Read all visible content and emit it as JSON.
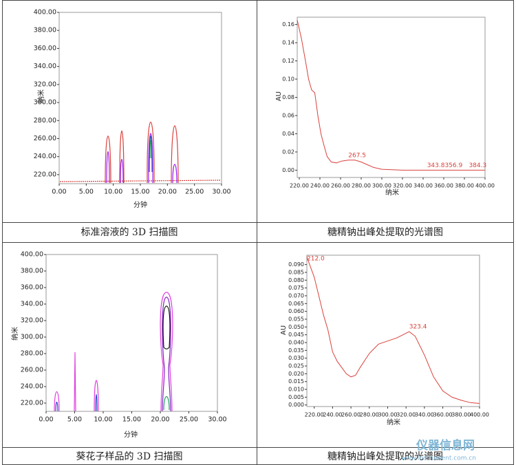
{
  "chart_data": [
    {
      "type": "contour",
      "x_label": "分钟",
      "y_label": "纳米",
      "xlim": [
        0,
        30
      ],
      "xticks": [
        {
          "value": 0,
          "label": "0.00"
        },
        {
          "value": 5,
          "label": "5.00"
        },
        {
          "value": 10,
          "label": "10.00"
        },
        {
          "value": 15,
          "label": "15.00"
        },
        {
          "value": 20,
          "label": "20.00"
        },
        {
          "value": 25,
          "label": "25.00"
        },
        {
          "value": 30,
          "label": "30.00"
        }
      ],
      "ylim": [
        210,
        400
      ],
      "yticks": [
        {
          "value": 220,
          "label": "220.00"
        },
        {
          "value": 240,
          "label": "240.00"
        },
        {
          "value": 260,
          "label": "260.00"
        },
        {
          "value": 280,
          "label": "280.00"
        },
        {
          "value": 300,
          "label": "300.00"
        },
        {
          "value": 320,
          "label": "320.00"
        },
        {
          "value": 340,
          "label": "340.00"
        },
        {
          "value": 360,
          "label": "360.00"
        },
        {
          "value": 380,
          "label": "380.00"
        },
        {
          "value": 400,
          "label": "400.00"
        }
      ]
    },
    {
      "type": "line",
      "x_label": "纳米",
      "y_label": "AU",
      "color": "#d9413b",
      "xlim": [
        218,
        400
      ],
      "xticks": [
        {
          "value": 220,
          "label": "220.00"
        },
        {
          "value": 240,
          "label": "240.00"
        },
        {
          "value": 260,
          "label": "260.00"
        },
        {
          "value": 280,
          "label": "280.00"
        },
        {
          "value": 300,
          "label": "300.00"
        },
        {
          "value": 320,
          "label": "320.00"
        },
        {
          "value": 340,
          "label": "340.00"
        },
        {
          "value": 360,
          "label": "360.00"
        },
        {
          "value": 380,
          "label": "380.00"
        },
        {
          "value": 400,
          "label": "400.00"
        }
      ],
      "ylim": [
        -0.008,
        0.168
      ],
      "yticks": [
        {
          "value": 0,
          "label": "0.00"
        },
        {
          "value": 0.02,
          "label": "0.02"
        },
        {
          "value": 0.04,
          "label": "0.04"
        },
        {
          "value": 0.06,
          "label": "0.06"
        },
        {
          "value": 0.08,
          "label": "0.08"
        },
        {
          "value": 0.1,
          "label": "0.10"
        },
        {
          "value": 0.12,
          "label": "0.12"
        },
        {
          "value": 0.14,
          "label": "0.14"
        },
        {
          "value": 0.16,
          "label": "0.16"
        }
      ],
      "x": [
        218,
        222,
        226,
        229,
        232,
        235,
        238,
        241,
        244,
        247,
        251,
        256,
        261,
        267.5,
        274,
        280,
        286,
        292,
        300,
        310,
        320,
        340,
        360,
        380,
        400
      ],
      "values": [
        0.165,
        0.145,
        0.12,
        0.1,
        0.088,
        0.085,
        0.06,
        0.04,
        0.027,
        0.015,
        0.009,
        0.008,
        0.01,
        0.011,
        0.011,
        0.009,
        0.006,
        0.003,
        0.001,
        0.0005,
        0,
        0,
        0,
        0,
        0
      ],
      "annotations": [
        {
          "x": 267.5,
          "y": 0.011,
          "label": "267.5"
        },
        {
          "x": 343.8,
          "y": 0,
          "label": "343.8"
        },
        {
          "x": 356.9,
          "y": 0,
          "label": "356.9"
        },
        {
          "x": 384.3,
          "y": 0,
          "label": "384.3"
        }
      ]
    },
    {
      "type": "contour",
      "x_label": "分钟",
      "y_label": "纳米",
      "xlim": [
        0,
        30
      ],
      "xticks": [
        {
          "value": 0,
          "label": "0.00"
        },
        {
          "value": 5,
          "label": "5.00"
        },
        {
          "value": 10,
          "label": "10.00"
        },
        {
          "value": 15,
          "label": "15.00"
        },
        {
          "value": 20,
          "label": "20.00"
        },
        {
          "value": 25,
          "label": "25.00"
        },
        {
          "value": 30,
          "label": "30.00"
        }
      ],
      "ylim": [
        210,
        400
      ],
      "yticks": [
        {
          "value": 220,
          "label": "220.00"
        },
        {
          "value": 240,
          "label": "240.00"
        },
        {
          "value": 260,
          "label": "260.00"
        },
        {
          "value": 280,
          "label": "280.00"
        },
        {
          "value": 300,
          "label": "300.00"
        },
        {
          "value": 320,
          "label": "320.00"
        },
        {
          "value": 340,
          "label": "340.00"
        },
        {
          "value": 360,
          "label": "360.00"
        },
        {
          "value": 380,
          "label": "380.00"
        },
        {
          "value": 400,
          "label": "400.00"
        }
      ]
    },
    {
      "type": "line",
      "x_label": "纳米",
      "y_label": "AU",
      "color": "#d9413b",
      "xlim": [
        212,
        400
      ],
      "xticks": [
        {
          "value": 220,
          "label": "220.00"
        },
        {
          "value": 240,
          "label": "240.00"
        },
        {
          "value": 260,
          "label": "260.00"
        },
        {
          "value": 280,
          "label": "280.00"
        },
        {
          "value": 300,
          "label": "300.00"
        },
        {
          "value": 320,
          "label": "320.00"
        },
        {
          "value": 340,
          "label": "340.00"
        },
        {
          "value": 360,
          "label": "360.00"
        },
        {
          "value": 380,
          "label": "380.00"
        },
        {
          "value": 400,
          "label": "400.00"
        }
      ],
      "ylim": [
        -0.001,
        0.096
      ],
      "yticks": [
        {
          "value": 0,
          "label": "0.000"
        },
        {
          "value": 0.005,
          "label": "0.005"
        },
        {
          "value": 0.01,
          "label": "0.010"
        },
        {
          "value": 0.015,
          "label": "0.015"
        },
        {
          "value": 0.02,
          "label": "0.020"
        },
        {
          "value": 0.025,
          "label": "0.025"
        },
        {
          "value": 0.03,
          "label": "0.030"
        },
        {
          "value": 0.035,
          "label": "0.035"
        },
        {
          "value": 0.04,
          "label": "0.040"
        },
        {
          "value": 0.045,
          "label": "0.045"
        },
        {
          "value": 0.05,
          "label": "0.050"
        },
        {
          "value": 0.055,
          "label": "0.055"
        },
        {
          "value": 0.06,
          "label": "0.060"
        },
        {
          "value": 0.065,
          "label": "0.065"
        },
        {
          "value": 0.07,
          "label": "0.070"
        },
        {
          "value": 0.075,
          "label": "0.075"
        },
        {
          "value": 0.08,
          "label": "0.080"
        },
        {
          "value": 0.085,
          "label": "0.085"
        },
        {
          "value": 0.09,
          "label": "0.090"
        }
      ],
      "x": [
        212,
        215,
        220,
        225,
        230,
        235,
        240,
        245,
        250,
        255,
        260,
        265,
        270,
        280,
        290,
        300,
        310,
        320,
        323.4,
        330,
        340,
        350,
        360,
        370,
        380,
        390,
        400
      ],
      "values": [
        0.095,
        0.09,
        0.082,
        0.07,
        0.058,
        0.048,
        0.034,
        0.028,
        0.024,
        0.02,
        0.018,
        0.019,
        0.024,
        0.033,
        0.039,
        0.041,
        0.043,
        0.046,
        0.047,
        0.044,
        0.032,
        0.018,
        0.009,
        0.005,
        0.003,
        0.0015,
        0.001
      ],
      "annotations": [
        {
          "x": 212,
          "y": 0.095,
          "label": "212.0"
        },
        {
          "x": 323.4,
          "y": 0.047,
          "label": "323.4"
        }
      ]
    }
  ],
  "captions": [
    "标准溶液的 3D 扫描图",
    "糖精钠出峰处提取的光谱图",
    "葵花子样品的 3D 扫描图",
    "糖精钠出峰处提取的光谱图"
  ],
  "watermark": {
    "name": "仪器信息网",
    "url": "www.instrument.com.cn"
  }
}
